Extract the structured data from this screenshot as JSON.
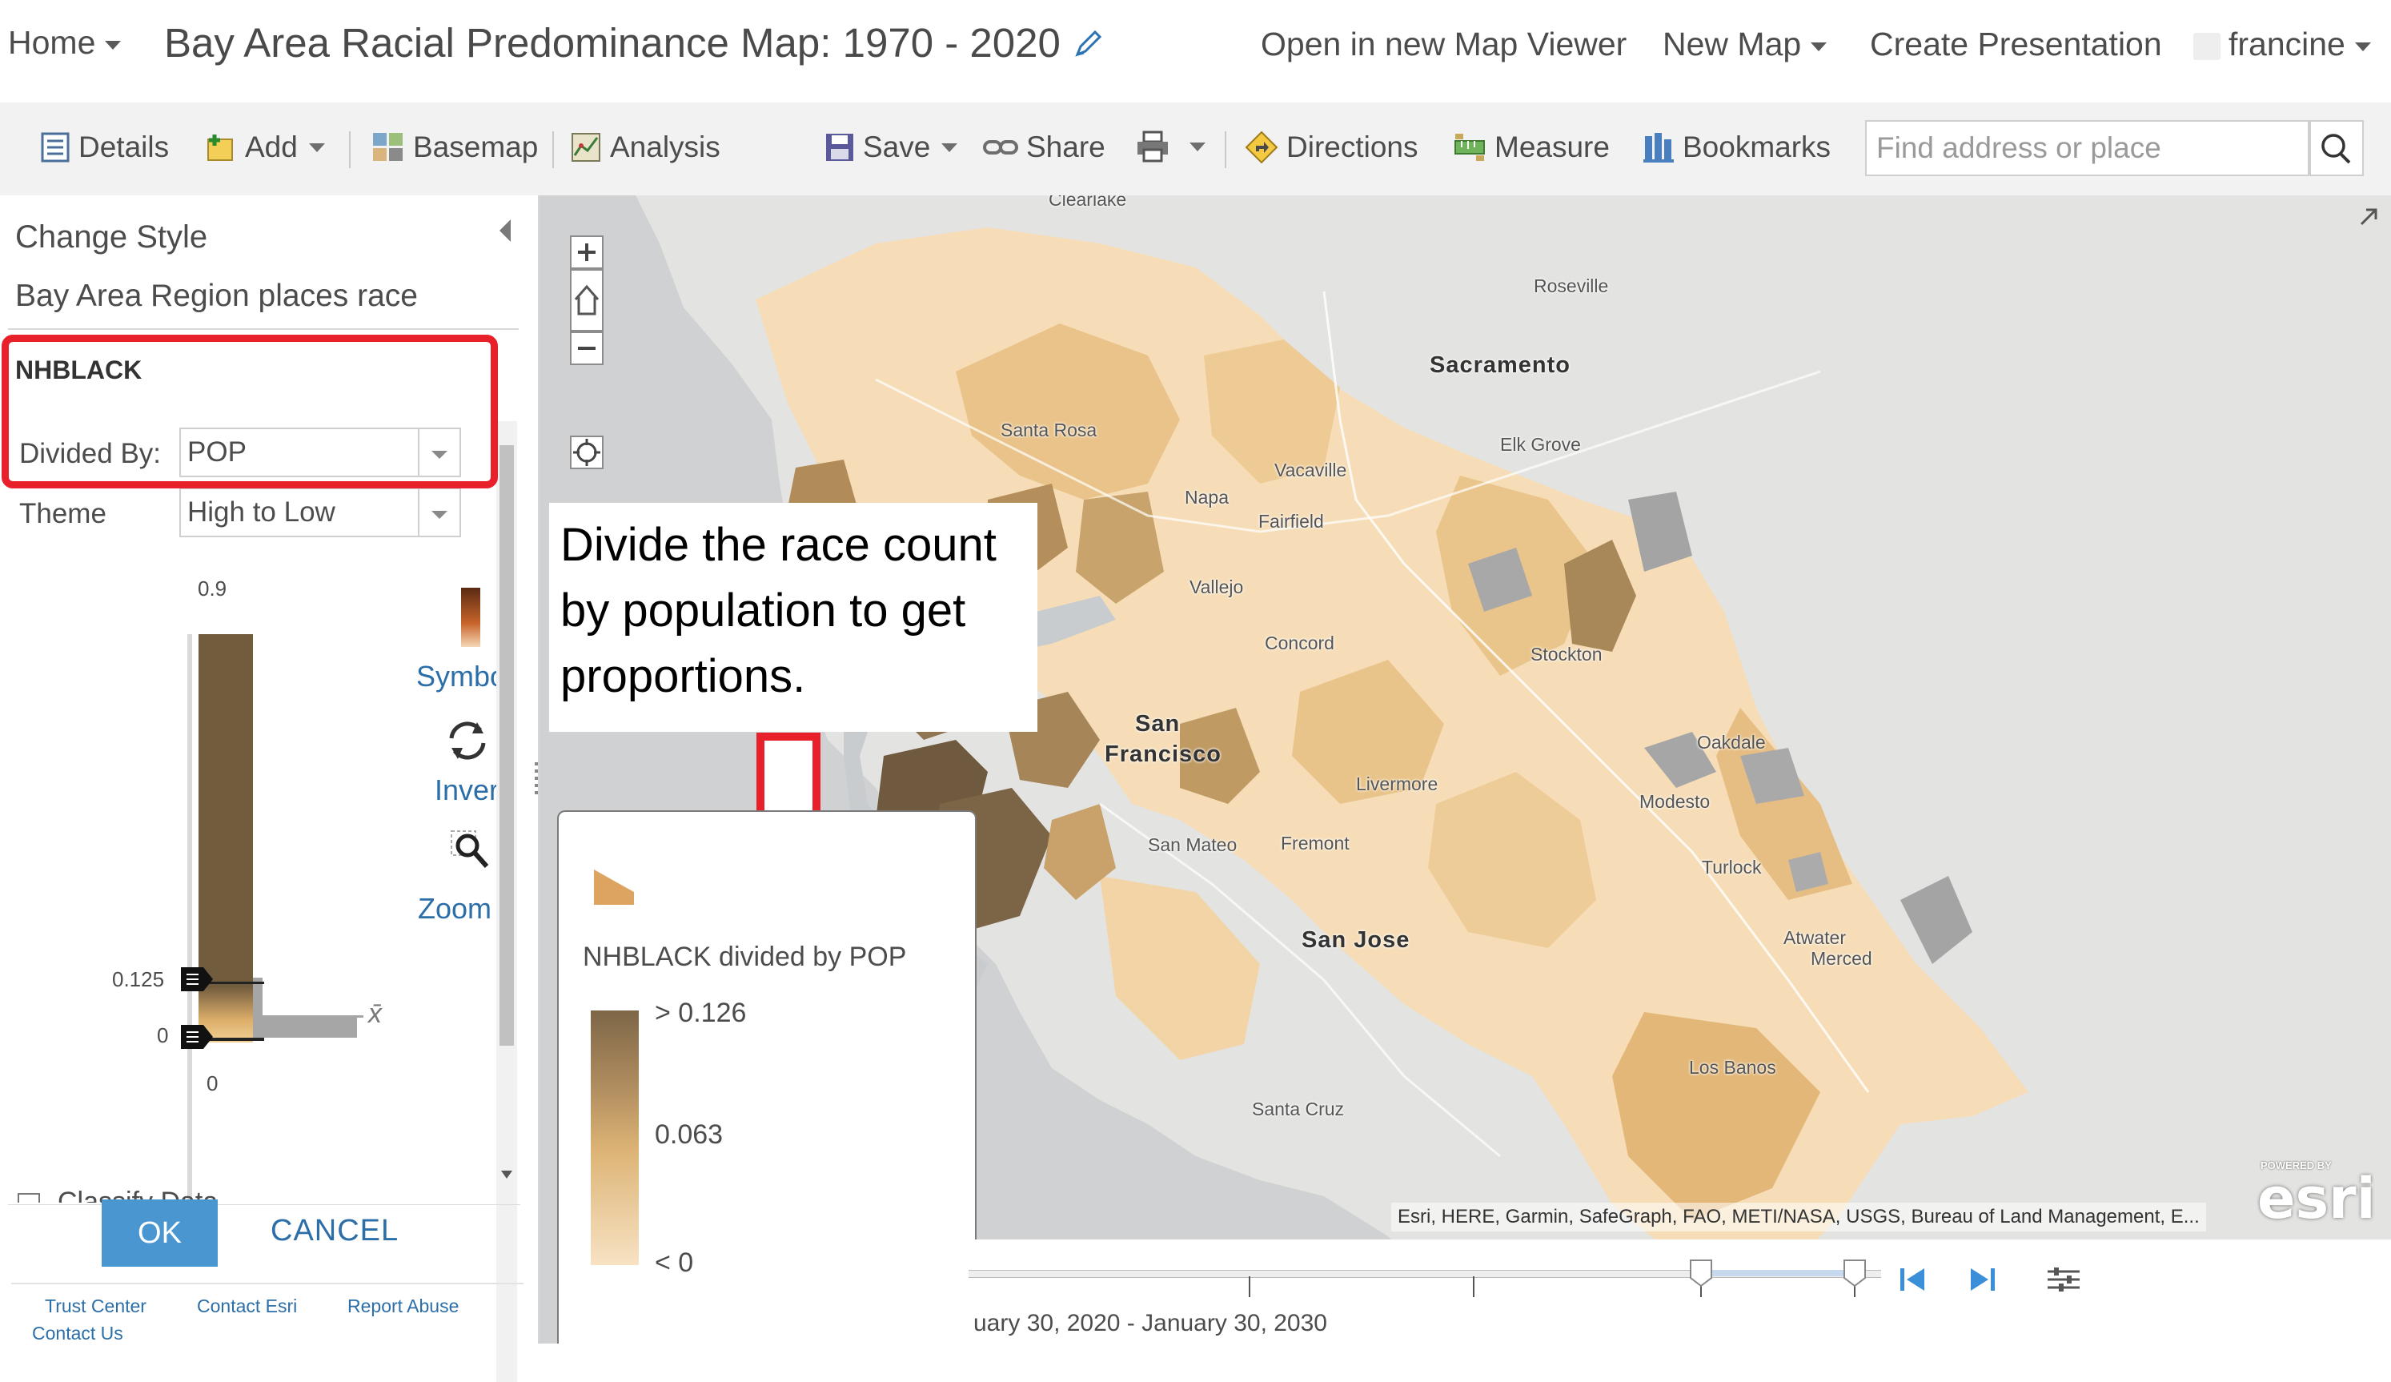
{
  "header": {
    "home_label": "Home",
    "map_title": "Bay Area Racial Predominance Map: 1970 - 2020",
    "open_new_viewer": "Open in new Map Viewer",
    "new_map": "New Map",
    "create_presentation": "Create Presentation",
    "user": "francine"
  },
  "toolbar": {
    "details": "Details",
    "add": "Add",
    "basemap": "Basemap",
    "analysis": "Analysis",
    "save": "Save",
    "share": "Share",
    "directions": "Directions",
    "measure": "Measure",
    "bookmarks": "Bookmarks",
    "search_placeholder": "Find address or place"
  },
  "style_panel": {
    "heading": "Change Style",
    "layer_name": "Bay Area Region places race",
    "field": "NHBLACK",
    "divided_by_label": "Divided By:",
    "divided_by_value": "POP",
    "theme_label": "Theme",
    "theme_value": "High to Low",
    "histogram": {
      "max": "0.9",
      "handle_high": "0.125",
      "handle_low": "0",
      "min": "0",
      "mean_symbol": "x̄"
    },
    "side_actions": {
      "symbols": "Symbo",
      "invert": "Inver",
      "zoom": "Zoom"
    },
    "classify_label": "Classify Data",
    "ok": "OK",
    "cancel": "CANCEL"
  },
  "footer": {
    "trust_center": "Trust Center",
    "contact_esri": "Contact Esri",
    "report_abuse": "Report Abuse",
    "contact_us": "Contact Us"
  },
  "annotation": {
    "text": "Divide the race count by population to get proportions."
  },
  "legend": {
    "title": "NHBLACK divided by POP",
    "high": "> 0.126",
    "mid": "0.063",
    "low": "< 0"
  },
  "map": {
    "cities": {
      "clearlake": "Clearlake",
      "roseville": "Roseville",
      "sacramento": "Sacramento",
      "elk_grove": "Elk Grove",
      "santa_rosa": "Santa Rosa",
      "vacaville": "Vacaville",
      "napa": "Napa",
      "fairfield": "Fairfield",
      "vallejo": "Vallejo",
      "concord": "Concord",
      "stockton": "Stockton",
      "san": "San",
      "francisco": "Francisco",
      "oakdale": "Oakdale",
      "livermore": "Livermore",
      "modesto": "Modesto",
      "san_mateo": "San Mateo",
      "fremont": "Fremont",
      "turlock": "Turlock",
      "san_jose": "San Jose",
      "atwater": "Atwater",
      "merced": "Merced",
      "los_banos": "Los Banos",
      "santa_cruz": "Santa Cruz"
    },
    "attribution": "Esri, HERE, Garmin, SafeGraph, FAO, METI/NASA, USGS, Bureau of Land Management, E...",
    "esri_powered": "POWERED BY",
    "esri_logo": "esri"
  },
  "time_slider": {
    "range_text": "uary 30, 2020 - January 30, 2030"
  },
  "colors": {
    "annotation_red": "#e8202a",
    "ok_blue": "#4a96d1",
    "choropleth_light": "#f7e2c3",
    "choropleth_mid": "#ddb476",
    "choropleth_dark": "#7d6647"
  }
}
